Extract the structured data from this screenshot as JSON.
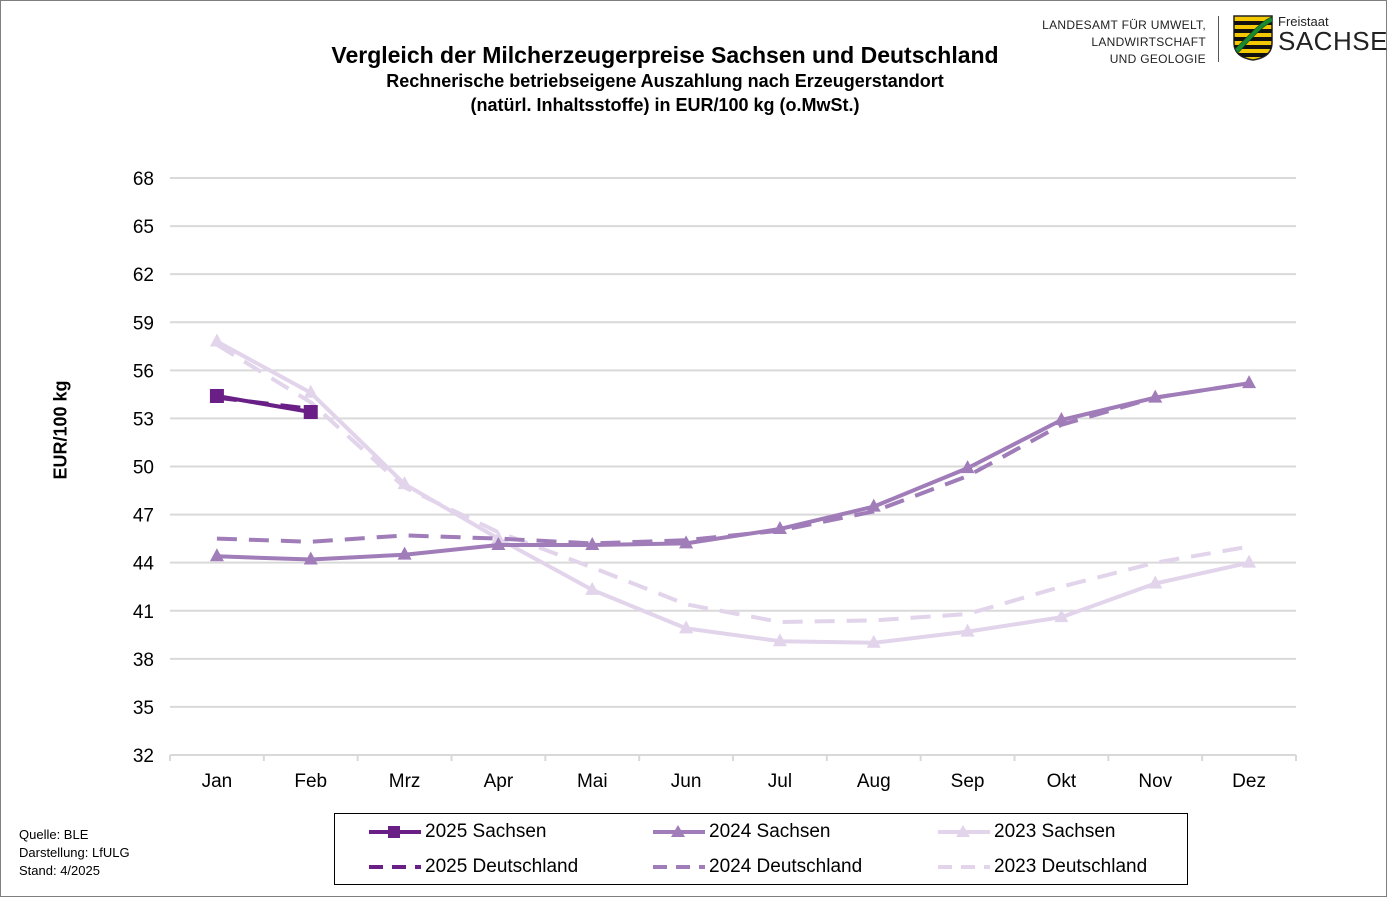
{
  "header": {
    "title": "Vergleich der Milcherzeugerpreise Sachsen und Deutschland",
    "subtitle_line1": "Rechnerische betriebseigene Auszahlung nach Erzeugerstandort",
    "subtitle_line2": "(natürl. Inhaltsstoffe) in EUR/100 kg (o.MwSt.)"
  },
  "logo": {
    "org_line1": "LANDESAMT FÜR UMWELT,",
    "org_line2": "LANDWIRTSCHAFT",
    "org_line3": "UND GEOLOGIE",
    "state_small": "Freistaat",
    "state_big": "SACHSEN",
    "icon": "saxony-coat-of-arms-icon"
  },
  "footer": {
    "source": "Quelle:  BLE",
    "made_by": "Darstellung:  LfULG",
    "date": "Stand:  4/2025"
  },
  "chart_data": {
    "type": "line",
    "ylabel": "EUR/100 kg",
    "xlabel": "",
    "ylim": [
      32,
      68
    ],
    "yticks": [
      32,
      35,
      38,
      41,
      44,
      47,
      50,
      53,
      56,
      59,
      62,
      65,
      68
    ],
    "grid": "horizontal",
    "legend_position": "bottom",
    "categories": [
      "Jan",
      "Feb",
      "Mrz",
      "Apr",
      "Mai",
      "Jun",
      "Jul",
      "Aug",
      "Sep",
      "Okt",
      "Nov",
      "Dez"
    ],
    "series": [
      {
        "name": "2025 Sachsen",
        "color": "#6a1f86",
        "style": "solid",
        "marker": "square",
        "values": [
          54.4,
          53.4,
          null,
          null,
          null,
          null,
          null,
          null,
          null,
          null,
          null,
          null
        ]
      },
      {
        "name": "2024 Sachsen",
        "color": "#a07cb8",
        "style": "solid",
        "marker": "triangle",
        "values": [
          44.4,
          44.2,
          44.5,
          45.1,
          45.1,
          45.2,
          46.1,
          47.5,
          49.9,
          52.9,
          54.3,
          55.2
        ]
      },
      {
        "name": "2023 Sachsen",
        "color": "#e1d4eb",
        "style": "solid",
        "marker": "triangle",
        "values": [
          57.8,
          54.6,
          48.9,
          45.5,
          42.3,
          39.9,
          39.1,
          39.0,
          39.7,
          40.6,
          42.7,
          44.0
        ]
      },
      {
        "name": "2025 Deutschland",
        "color": "#6a1f86",
        "style": "dashed",
        "marker": "none",
        "values": [
          54.3,
          53.6,
          null,
          null,
          null,
          null,
          null,
          null,
          null,
          null,
          null,
          null
        ]
      },
      {
        "name": "2024 Deutschland",
        "color": "#a07cb8",
        "style": "dashed",
        "marker": "none",
        "values": [
          45.5,
          45.3,
          45.7,
          45.5,
          45.2,
          45.4,
          46.0,
          47.2,
          49.4,
          52.6,
          54.3,
          55.2
        ]
      },
      {
        "name": "2023 Deutschland",
        "color": "#e1d4eb",
        "style": "dashed",
        "marker": "none",
        "values": [
          57.6,
          54.0,
          48.7,
          45.9,
          43.7,
          41.4,
          40.3,
          40.4,
          40.8,
          42.5,
          44.0,
          45.0
        ]
      }
    ]
  }
}
